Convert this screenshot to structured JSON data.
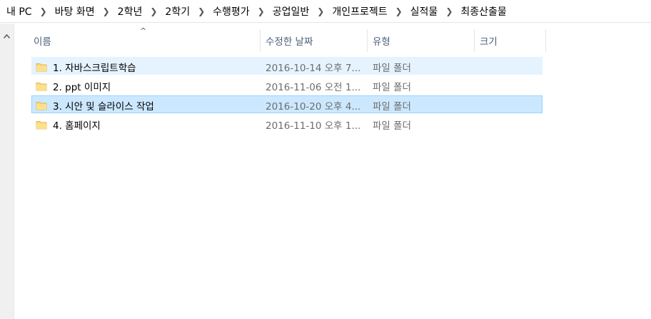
{
  "breadcrumb": [
    "내 PC",
    "바탕 화면",
    "2학년",
    "2학기",
    "수행평가",
    "공업일반",
    "개인프로젝트",
    "실적물",
    "최종산출물"
  ],
  "columns": {
    "name": "이름",
    "date": "수정한 날짜",
    "type": "유형",
    "size": "크기"
  },
  "sort": {
    "column": "name",
    "direction": "ascending"
  },
  "rows": [
    {
      "name": "1. 자바스크립트학습",
      "date": "2016-10-14 오후 7...",
      "type": "파일 폴더",
      "size": "",
      "state": "hover"
    },
    {
      "name": "2. ppt 이미지",
      "date": "2016-11-06 오전 1...",
      "type": "파일 폴더",
      "size": "",
      "state": "normal"
    },
    {
      "name": "3. 시안 및 슬라이스 작업",
      "date": "2016-10-20 오후 4...",
      "type": "파일 폴더",
      "size": "",
      "state": "selected"
    },
    {
      "name": "4. 홈페이지",
      "date": "2016-11-10 오후 1...",
      "type": "파일 폴더",
      "size": "",
      "state": "normal"
    }
  ],
  "colors": {
    "hover_bg": "#e5f3ff",
    "selected_bg": "#cce8ff",
    "selected_border": "#99d1ff",
    "header_text": "#4c607a",
    "folder_yellow": "#f8d775"
  },
  "icons": {
    "folder": "folder-icon",
    "breadcrumb_separator": "chevron-right-icon",
    "scroll_up": "scroll-up-arrow-icon",
    "sort": "sort-ascending-icon"
  }
}
